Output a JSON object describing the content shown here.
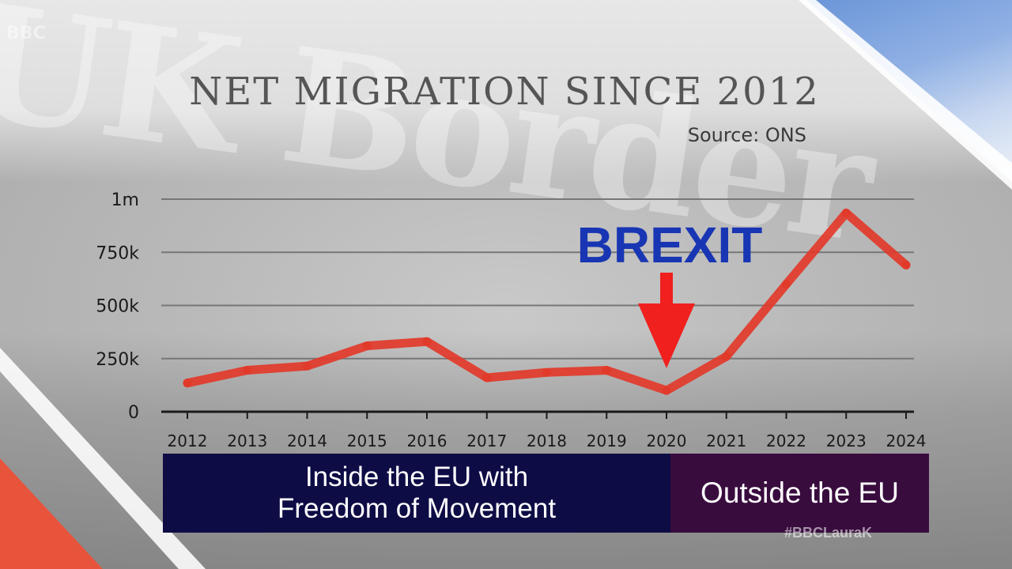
{
  "watermark": "#BBCLauraK",
  "colors": {
    "line": "#e23a2a",
    "arrow": "#f0201e",
    "brexit_text": "#1836b3",
    "inside_band": "#0e0c45",
    "outside_band": "#390c3e",
    "grid": "#777777"
  },
  "chart_data": {
    "type": "line",
    "title": "NET MIGRATION SINCE 2012",
    "subtitle": "Source: ONS",
    "xlabel": "",
    "ylabel": "",
    "categories": [
      "2012",
      "2013",
      "2014",
      "2015",
      "2016",
      "2017",
      "2018",
      "2019",
      "2020",
      "2021",
      "2022",
      "2023",
      "2024"
    ],
    "y_tick_labels": [
      "0",
      "250k",
      "500k",
      "750k",
      "1m"
    ],
    "y_ticks": [
      0,
      250000,
      500000,
      750000,
      1000000
    ],
    "ylim": [
      0,
      1000000
    ],
    "grid": true,
    "series": [
      {
        "values": [
          135000,
          195000,
          215000,
          310000,
          330000,
          160000,
          185000,
          195000,
          100000,
          260000,
          600000,
          935000,
          690000
        ]
      }
    ],
    "annotations": [
      {
        "text": "BREXIT",
        "x": "2020",
        "marker": "down-arrow"
      }
    ]
  },
  "periods": {
    "inside": {
      "line1": "Inside the EU with",
      "line2": "Freedom of Movement"
    },
    "outside": {
      "label": "Outside the EU"
    }
  }
}
